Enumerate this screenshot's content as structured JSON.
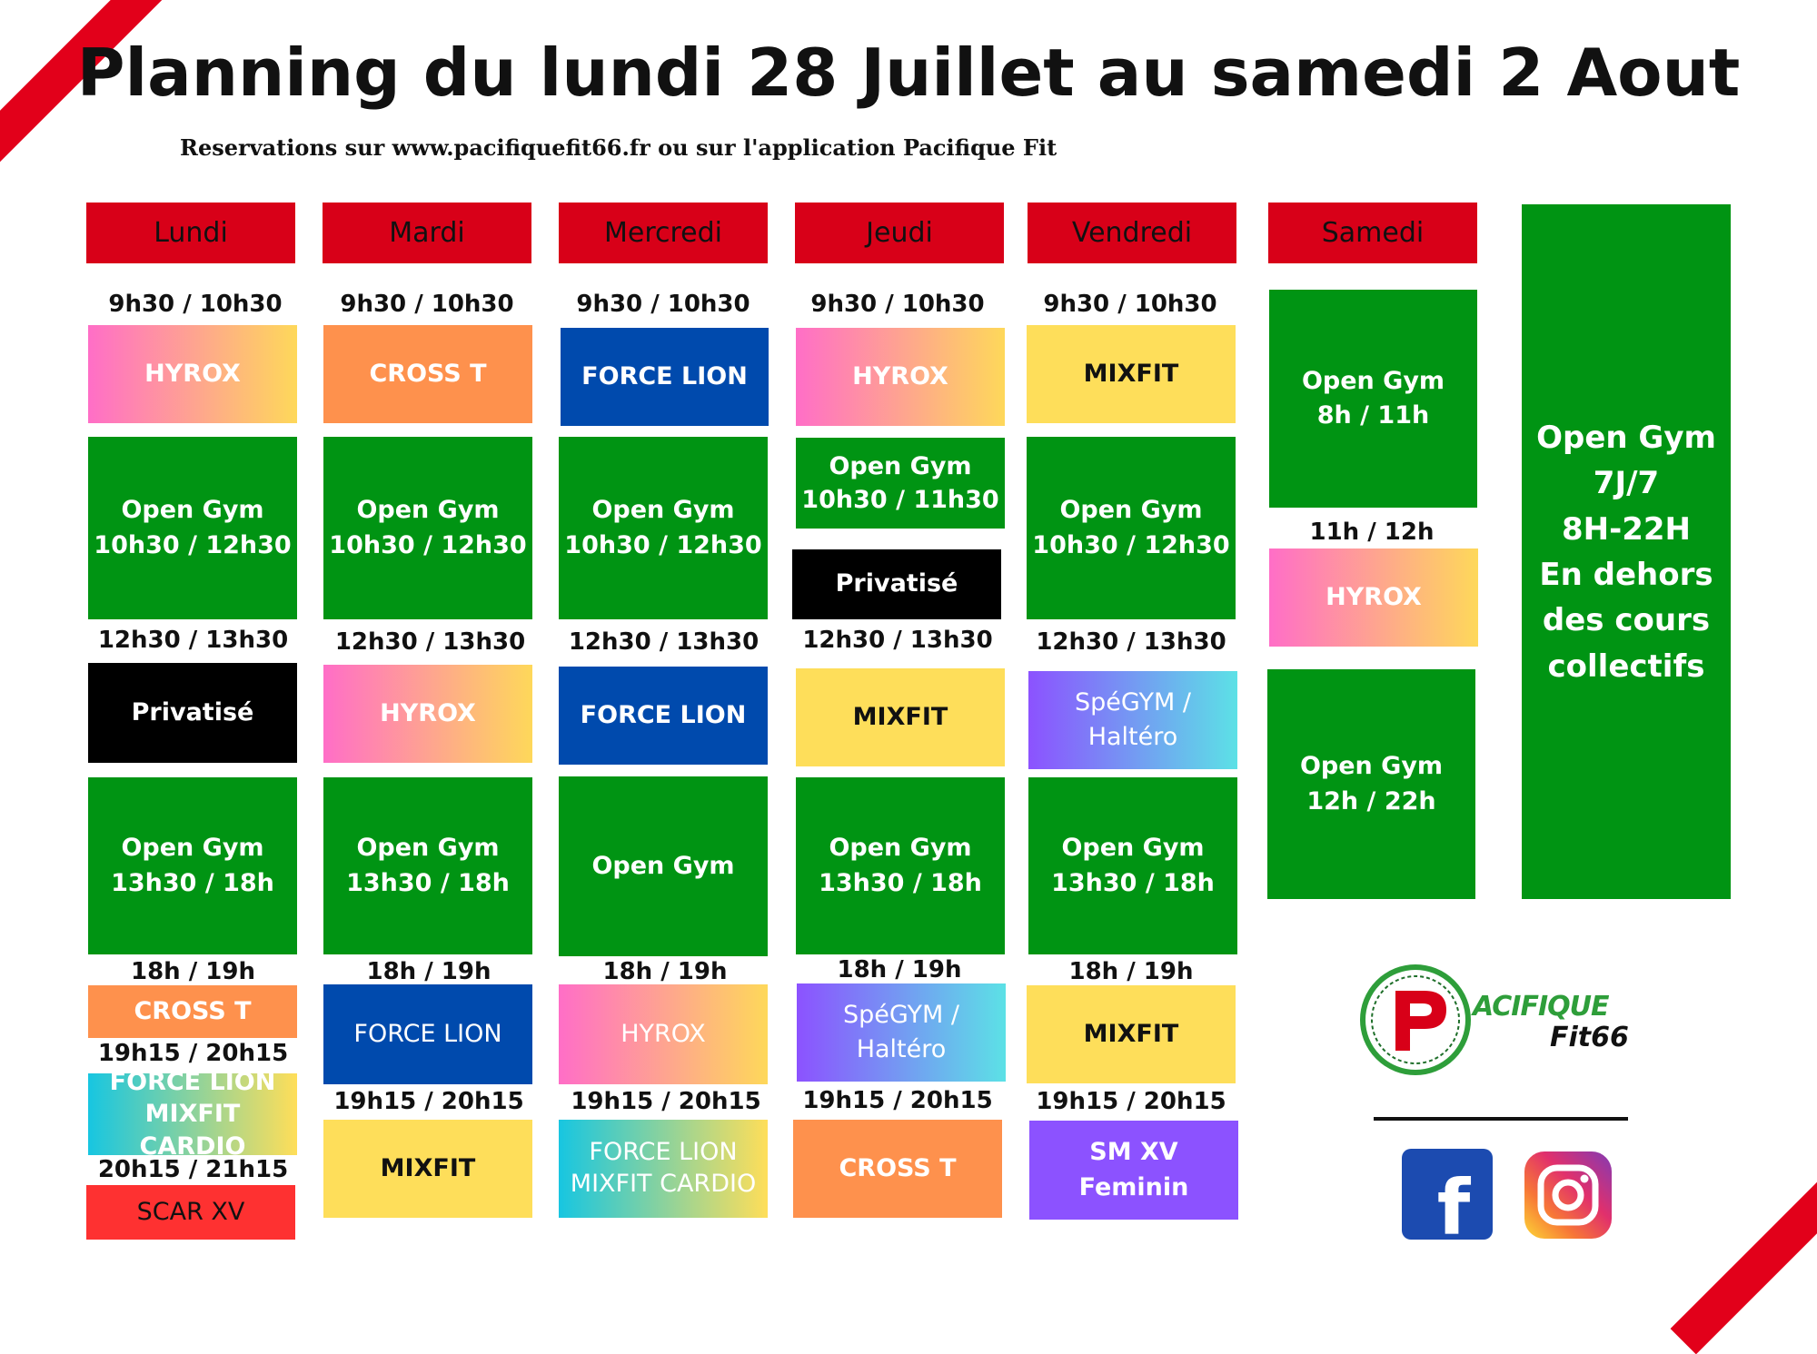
{
  "header": {
    "title": "Planning du lundi 28 Juillet au samedi 2 Aout",
    "subtitle": "Reservations sur www.pacifiquefit66.fr ou sur l'application Pacifique Fit"
  },
  "days": {
    "lundi": "Lundi",
    "mardi": "Mardi",
    "mercredi": "Mercredi",
    "jeudi": "Jeudi",
    "vendredi": "Vendredi",
    "samedi": "Samedi"
  },
  "lundi": {
    "t1": "9h30 / 10h30",
    "c1": "HYROX",
    "og1a": "Open Gym",
    "og1b": "10h30 / 12h30",
    "t2": "12h30 / 13h30",
    "c2": "Privatisé",
    "og2a": "Open Gym",
    "og2b": "13h30 / 18h",
    "t3": "18h / 19h",
    "c3": "CROSS T",
    "t4": "19h15 / 20h15",
    "c4a": "FORCE LION",
    "c4b": "MIXFIT CARDIO",
    "t5": "20h15 / 21h15",
    "c5": "SCAR XV"
  },
  "mardi": {
    "t1": "9h30 / 10h30",
    "c1": "CROSS T",
    "og1a": "Open Gym",
    "og1b": "10h30 / 12h30",
    "t2": "12h30 / 13h30",
    "c2": "HYROX",
    "og2a": "Open Gym",
    "og2b": "13h30 / 18h",
    "t3": "18h / 19h",
    "c3": "FORCE LION",
    "t4": "19h15 / 20h15",
    "c4": "MIXFIT"
  },
  "mercredi": {
    "t1": "9h30 / 10h30",
    "c1": "FORCE LION",
    "og1a": "Open Gym",
    "og1b": "10h30 / 12h30",
    "t2": "12h30 / 13h30",
    "c2": "FORCE LION",
    "og2": "Open Gym",
    "t3": "18h / 19h",
    "c3": "HYROX",
    "t4": "19h15 / 20h15",
    "c4a": "FORCE LION",
    "c4b": "MIXFIT CARDIO"
  },
  "jeudi": {
    "t1": "9h30 / 10h30",
    "c1": "HYROX",
    "og1a": "Open Gym",
    "og1b": "10h30 / 11h30",
    "priv": "Privatisé",
    "t2": "12h30 / 13h30",
    "c2": "MIXFIT",
    "og2a": "Open Gym",
    "og2b": "13h30 / 18h",
    "t3": "18h / 19h",
    "c3a": "SpéGYM /",
    "c3b": "Haltéro",
    "t4": "19h15 / 20h15",
    "c4": "CROSS T"
  },
  "vendredi": {
    "t1": "9h30 / 10h30",
    "c1": "MIXFIT",
    "og1a": "Open Gym",
    "og1b": "10h30 / 12h30",
    "t2": "12h30 / 13h30",
    "c2a": "SpéGYM /",
    "c2b": "Haltéro",
    "og2a": "Open Gym",
    "og2b": "13h30 / 18h",
    "t3": "18h / 19h",
    "c3": "MIXFIT",
    "t4": "19h15 / 20h15",
    "c4a": "SM XV",
    "c4b": "Feminin"
  },
  "samedi": {
    "og1a": "Open Gym",
    "og1b": "8h / 11h",
    "t1": "11h / 12h",
    "c1": "HYROX",
    "og2a": "Open Gym",
    "og2b": "12h / 22h"
  },
  "opengym_info": {
    "l1": "Open Gym",
    "l2": "7J/7",
    "l3": "8H-22H",
    "l4": "En dehors",
    "l5": "des cours",
    "l6": "collectifs"
  },
  "logo": {
    "letter": "P",
    "line1": "ACIFIQUE",
    "line2": "Fit66"
  },
  "social": {
    "facebook_glyph": "f"
  },
  "colors": {
    "day_header": "#d80018",
    "open_gym": "#009413",
    "force_lion": "#004aad",
    "mixfit": "#fede5a",
    "cross_t": "#fe914d",
    "scar_xv": "#fe3131",
    "sm_xv": "#8c52ff"
  }
}
